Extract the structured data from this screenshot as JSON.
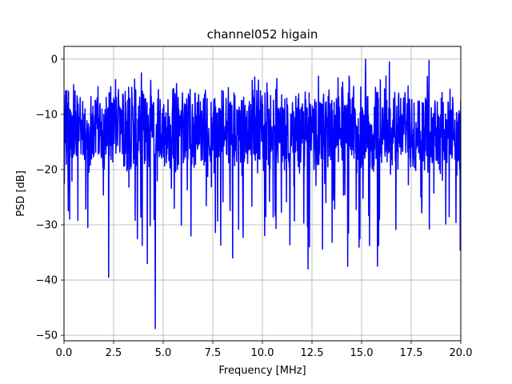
{
  "chart_data": {
    "type": "line",
    "title": "channel052 higain",
    "xlabel": "Frequency [MHz]",
    "ylabel": "PSD [dB]",
    "xlim": [
      0,
      20
    ],
    "ylim": [
      -51,
      2.3
    ],
    "xticks": [
      0,
      2.5,
      5,
      7.5,
      10,
      12.5,
      15,
      17.5,
      20
    ],
    "xtick_labels": [
      "0.0",
      "2.5",
      "5.0",
      "7.5",
      "10.0",
      "12.5",
      "15.0",
      "17.5",
      "20.0"
    ],
    "yticks": [
      0,
      -10,
      -20,
      -30,
      -40,
      -50
    ],
    "ytick_labels": [
      "0",
      "−10",
      "−20",
      "−30",
      "−40",
      "−50"
    ],
    "grid": true,
    "series": [
      {
        "color": "#0000ff",
        "baseline_db": -13,
        "x_range": [
          0,
          20
        ],
        "y_range": [
          -48.8,
          0
        ],
        "notable_points": [
          {
            "x": 0.0,
            "y": -6.5
          },
          {
            "x": 1.2,
            "y": -30.5
          },
          {
            "x": 2.25,
            "y": -39.5
          },
          {
            "x": 3.7,
            "y": -32.5
          },
          {
            "x": 3.9,
            "y": -2.5
          },
          {
            "x": 4.2,
            "y": -37.0
          },
          {
            "x": 4.6,
            "y": -48.8
          },
          {
            "x": 6.4,
            "y": -32.0
          },
          {
            "x": 8.5,
            "y": -36.0
          },
          {
            "x": 12.3,
            "y": -38.0
          },
          {
            "x": 14.3,
            "y": -37.5
          },
          {
            "x": 15.2,
            "y": 0.0
          },
          {
            "x": 15.8,
            "y": -37.5
          },
          {
            "x": 16.4,
            "y": -0.5
          },
          {
            "x": 18.4,
            "y": -0.2
          },
          {
            "x": 19.8,
            "y": -21.0
          }
        ]
      }
    ]
  }
}
